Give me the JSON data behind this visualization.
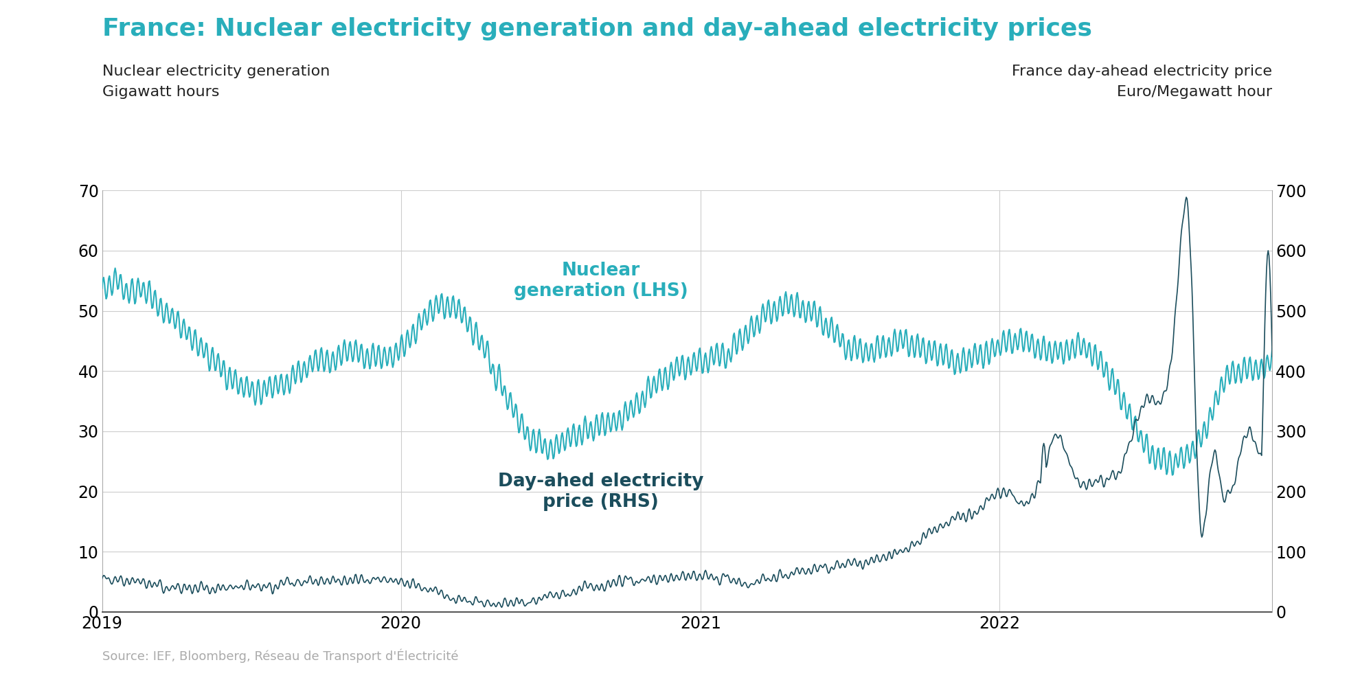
{
  "title": "France: Nuclear electricity generation and day-ahead electricity prices",
  "title_color": "#29AEBB",
  "left_label_line1": "Nuclear electricity generation",
  "left_label_line2": "Gigawatt hours",
  "right_label_line1": "France day-ahead electricity price",
  "right_label_line2": "Euro/Megawatt hour",
  "left_yticks": [
    0,
    10,
    20,
    30,
    40,
    50,
    60,
    70
  ],
  "right_yticks": [
    0,
    100,
    200,
    300,
    400,
    500,
    600,
    700
  ],
  "ylim_left": [
    0,
    70
  ],
  "ylim_right": [
    0,
    700
  ],
  "nuclear_color": "#29AEBB",
  "price_color": "#1B4D5C",
  "nuclear_label": "Nuclear\ngeneration (LHS)",
  "price_label": "Day-ahed electricity\nprice (RHS)",
  "source_text": "Source: IEF, Bloomberg, Réseau de Transport d'Électricité",
  "grid_color": "#CCCCCC",
  "background_color": "#FFFFFF",
  "title_fontsize": 26,
  "label_fontsize": 16,
  "tick_fontsize": 17,
  "annotation_fontsize": 19
}
